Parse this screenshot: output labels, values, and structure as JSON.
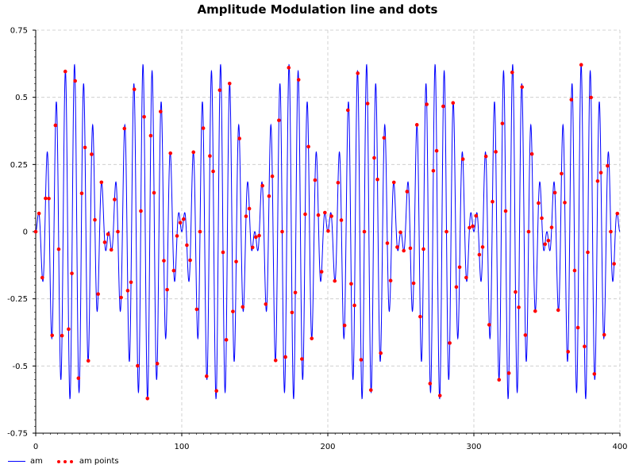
{
  "chart_data": {
    "type": "line",
    "title": "Amplitude Modulation line and dots",
    "xlabel": "",
    "ylabel": "",
    "xlim": [
      0,
      400
    ],
    "ylim": [
      -0.75,
      0.75
    ],
    "x_ticks": [
      0,
      100,
      200,
      300,
      400
    ],
    "y_ticks": [
      -0.75,
      -0.5,
      -0.25,
      0,
      0.25,
      0.5,
      0.75
    ],
    "y_tick_labels": [
      "-0.75",
      "-0.5",
      "-0.25",
      "0",
      "0.25",
      "0.5",
      "0.75"
    ],
    "grid": true,
    "legend_position": "bottom-left",
    "series": [
      {
        "name": "am",
        "kind": "line",
        "color": "#0000ff",
        "formula": "0.625 * sin(2*pi*x/100) * sin(2*pi*x/6.25)",
        "x_start": 0,
        "x_end": 400
      },
      {
        "name": "am points",
        "kind": "points",
        "color": "#ff0000",
        "x_start": 0,
        "x_end": 400,
        "x_step": 2.25
      }
    ]
  }
}
